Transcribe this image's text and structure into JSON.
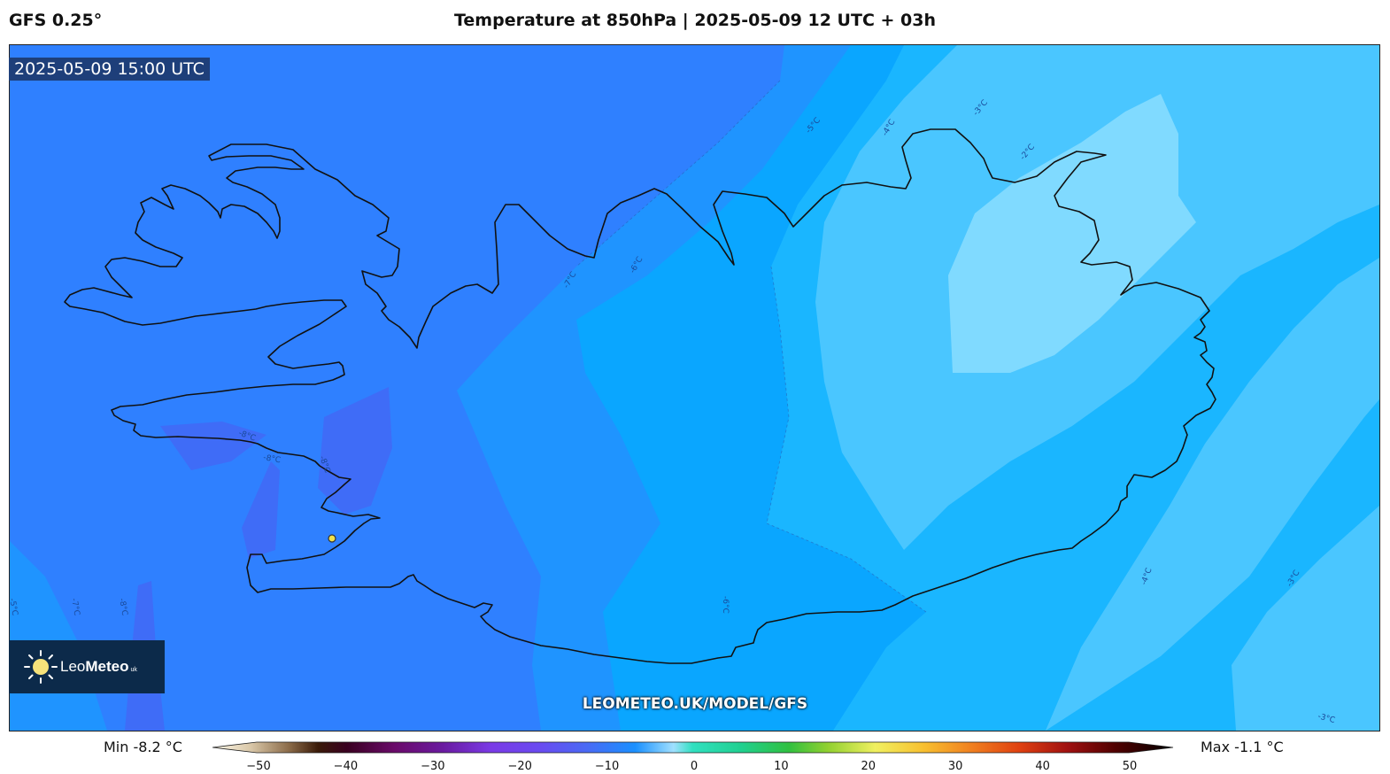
{
  "header": {
    "model": "GFS 0.25°",
    "title": "Temperature at 850hPa | 2025-05-09 12 UTC + 03h"
  },
  "map": {
    "valid_time": "2025-05-09 15:00 UTC",
    "watermark": "LEOMETEO.UK/MODEL/GFS",
    "contour_labels": [
      "-8°C",
      "-8°C",
      "-8°C",
      "-7°C",
      "-6°C",
      "-5°C",
      "-4°C",
      "-3°C",
      "-2°C",
      "-6°C",
      "-4°C",
      "-3°C",
      "-3°C",
      "-7°C",
      "-8°C",
      "-5°C"
    ],
    "colors": {
      "band_minus8": "#3f6cf7",
      "band_minus7": "#2f80ff",
      "band_minus6": "#1f94ff",
      "band_minus5": "#0aa6ff",
      "band_minus4": "#1ab6ff",
      "band_minus3": "#4ac6ff",
      "band_minus2": "#80daff",
      "coastline": "#111111",
      "station_marker": "#f2e14b"
    }
  },
  "logo": {
    "brand_light": "Leo",
    "brand_bold": "Meteo",
    "suffix": "uk"
  },
  "legend": {
    "min_label": "Min -8.2 °C",
    "max_label": "Max -1.1 °C",
    "ticks": [
      "−50",
      "−40",
      "−30",
      "−20",
      "−10",
      "0",
      "10",
      "20",
      "30",
      "40",
      "50"
    ],
    "range": [
      -50,
      50
    ]
  }
}
